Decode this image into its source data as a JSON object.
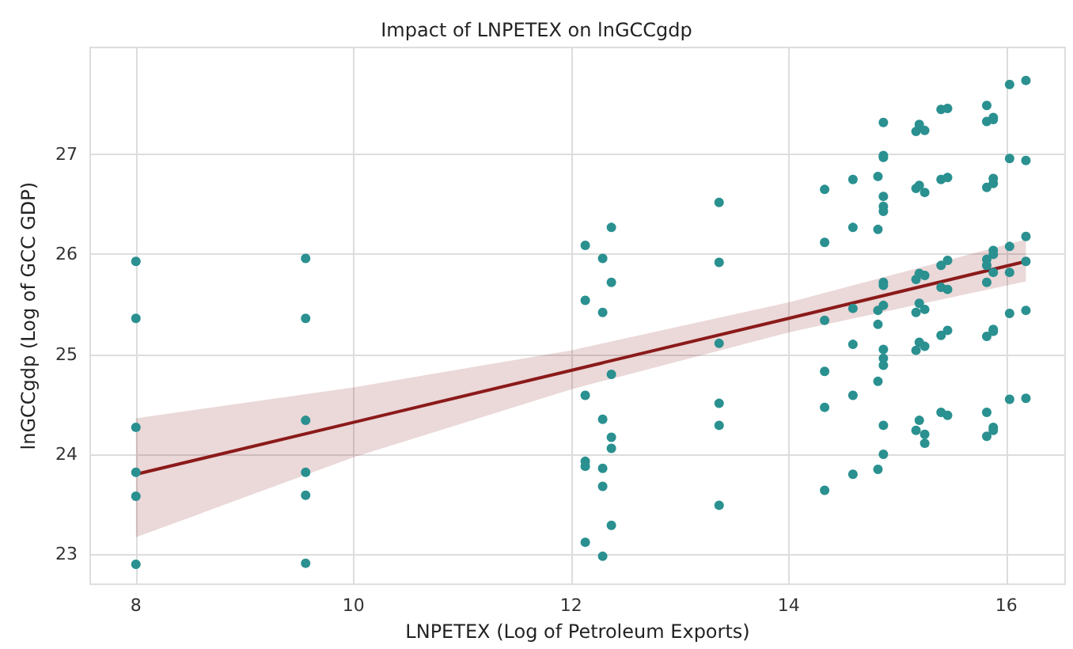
{
  "chart_data": {
    "type": "scatter",
    "title": "Impact of LNPETEX on lnGCCgdp",
    "xlabel": "LNPETEX (Log of Petroleum Exports)",
    "ylabel": "lnGCCgdp (Log of GCC GDP)",
    "xlim": [
      7.58,
      16.54
    ],
    "ylim": [
      22.7,
      28.07
    ],
    "xticks": [
      8,
      10,
      12,
      14,
      16
    ],
    "yticks": [
      23,
      24,
      25,
      26,
      27
    ],
    "grid": true,
    "marker": "circle",
    "series": [
      {
        "color": "#2a9090",
        "x": [
          8,
          8,
          8,
          8,
          8,
          8,
          9.56,
          9.56,
          9.56,
          9.56,
          9.56,
          9.56,
          12.13,
          12.13,
          12.13,
          12.13,
          12.13,
          12.13,
          12.29,
          12.29,
          12.29,
          12.29,
          12.29,
          12.29,
          12.37,
          12.37,
          12.37,
          12.37,
          12.37,
          12.37,
          13.36,
          13.36,
          13.36,
          13.36,
          13.36,
          13.36,
          14.33,
          14.33,
          14.33,
          14.33,
          14.33,
          14.33,
          14.59,
          14.59,
          14.59,
          14.59,
          14.59,
          14.59,
          14.82,
          14.82,
          14.82,
          14.82,
          14.82,
          14.82,
          14.87,
          14.87,
          14.87,
          14.87,
          14.87,
          14.87,
          14.87,
          14.87,
          14.87,
          14.87,
          14.87,
          14.87,
          14.87,
          14.87,
          15.17,
          15.17,
          15.17,
          15.17,
          15.17,
          15.17,
          15.2,
          15.2,
          15.2,
          15.2,
          15.2,
          15.2,
          15.25,
          15.25,
          15.25,
          15.25,
          15.25,
          15.25,
          15.25,
          15.4,
          15.4,
          15.4,
          15.4,
          15.4,
          15.4,
          15.46,
          15.46,
          15.46,
          15.46,
          15.46,
          15.46,
          15.82,
          15.82,
          15.82,
          15.82,
          15.82,
          15.82,
          15.82,
          15.82,
          15.82,
          15.88,
          15.88,
          15.88,
          15.88,
          15.88,
          15.88,
          15.88,
          15.88,
          15.88,
          15.88,
          15.88,
          16.03,
          16.03,
          16.03,
          16.03,
          16.03,
          16.03,
          16.18,
          16.18,
          16.18,
          16.18,
          16.18,
          16.18
        ],
        "values": [
          25.93,
          25.36,
          24.27,
          23.82,
          23.58,
          22.9,
          25.96,
          25.36,
          24.34,
          23.82,
          23.59,
          22.91,
          26.09,
          25.54,
          24.59,
          23.93,
          23.88,
          23.12,
          25.96,
          25.42,
          24.35,
          23.86,
          23.68,
          22.98,
          26.27,
          25.72,
          24.8,
          24.17,
          24.06,
          23.29,
          26.52,
          25.92,
          25.11,
          24.51,
          24.29,
          23.49,
          26.65,
          26.12,
          25.34,
          24.83,
          24.47,
          23.64,
          26.75,
          26.27,
          25.46,
          25.1,
          24.59,
          23.8,
          26.78,
          26.25,
          25.44,
          25.3,
          24.73,
          23.85,
          27.32,
          26.99,
          26.97,
          26.58,
          26.48,
          26.43,
          25.72,
          25.69,
          25.49,
          25.05,
          24.96,
          24.89,
          24.29,
          24.0,
          27.23,
          26.66,
          25.75,
          25.42,
          25.04,
          24.24,
          27.3,
          26.69,
          25.81,
          25.51,
          25.12,
          24.34,
          27.24,
          26.62,
          25.79,
          25.45,
          25.08,
          24.2,
          24.11,
          27.45,
          26.75,
          25.89,
          25.67,
          25.19,
          24.42,
          27.46,
          26.77,
          25.94,
          25.65,
          25.24,
          24.39,
          27.49,
          27.33,
          26.67,
          25.95,
          25.89,
          25.72,
          25.18,
          24.42,
          24.18,
          27.37,
          27.35,
          26.76,
          26.71,
          26.04,
          26.0,
          25.82,
          25.25,
          25.23,
          24.27,
          24.24,
          27.7,
          26.96,
          26.08,
          25.82,
          25.41,
          24.55,
          27.74,
          26.94,
          26.18,
          25.93,
          25.44,
          24.56
        ]
      },
      {
        "type": "line",
        "color": "#8b1a1a",
        "marker": "none",
        "x": [
          8,
          10,
          12,
          14,
          16.18
        ],
        "values": [
          23.8,
          24.32,
          24.84,
          25.36,
          25.93
        ],
        "lower": [
          23.17,
          23.97,
          24.65,
          25.22,
          25.73
        ],
        "upper": [
          24.36,
          24.67,
          25.04,
          25.52,
          26.15
        ]
      }
    ]
  }
}
